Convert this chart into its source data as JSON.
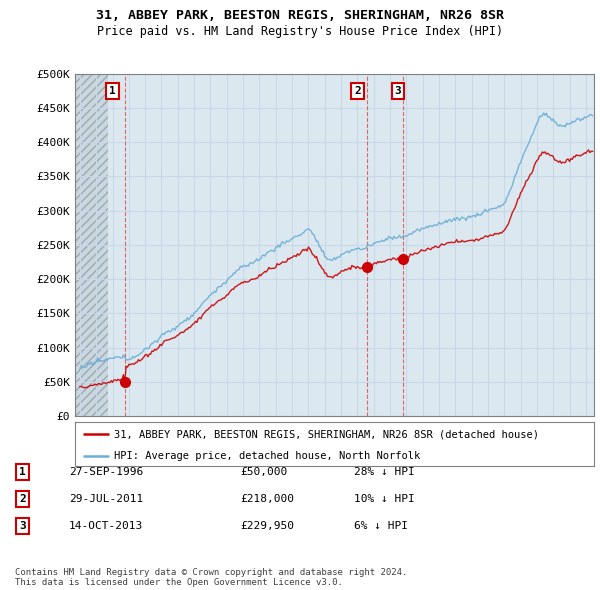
{
  "title": "31, ABBEY PARK, BEESTON REGIS, SHERINGHAM, NR26 8SR",
  "subtitle": "Price paid vs. HM Land Registry's House Price Index (HPI)",
  "legend_line1": "31, ABBEY PARK, BEESTON REGIS, SHERINGHAM, NR26 8SR (detached house)",
  "legend_line2": "HPI: Average price, detached house, North Norfolk",
  "sale_dates": [
    1996.747,
    2011.58,
    2013.789
  ],
  "sale_prices": [
    50000,
    218000,
    229950
  ],
  "sale_labels": [
    "1",
    "2",
    "3"
  ],
  "table": [
    {
      "num": "1",
      "date": "27-SEP-1996",
      "price": "£50,000",
      "hpi": "28% ↓ HPI"
    },
    {
      "num": "2",
      "date": "29-JUL-2011",
      "price": "£218,000",
      "hpi": "10% ↓ HPI"
    },
    {
      "num": "3",
      "date": "14-OCT-2013",
      "price": "£229,950",
      "hpi": "6% ↓ HPI"
    }
  ],
  "footnote1": "Contains HM Land Registry data © Crown copyright and database right 2024.",
  "footnote2": "This data is licensed under the Open Government Licence v3.0.",
  "hpi_color": "#6baed6",
  "sale_color": "#cc0000",
  "vline_color": "#dd4444",
  "grid_color": "#c8d8e8",
  "plot_bg": "#dce8f0",
  "hatch_color": "#c8d0d8",
  "ylim": [
    0,
    500000
  ],
  "ytick_labels": [
    "£0",
    "£50K",
    "£100K",
    "£150K",
    "£200K",
    "£250K",
    "£300K",
    "£350K",
    "£400K",
    "£450K",
    "£500K"
  ],
  "ytick_vals": [
    0,
    50000,
    100000,
    150000,
    200000,
    250000,
    300000,
    350000,
    400000,
    450000,
    500000
  ],
  "xlim_start": 1993.7,
  "xlim_end": 2025.5,
  "hatch_end": 1995.7
}
